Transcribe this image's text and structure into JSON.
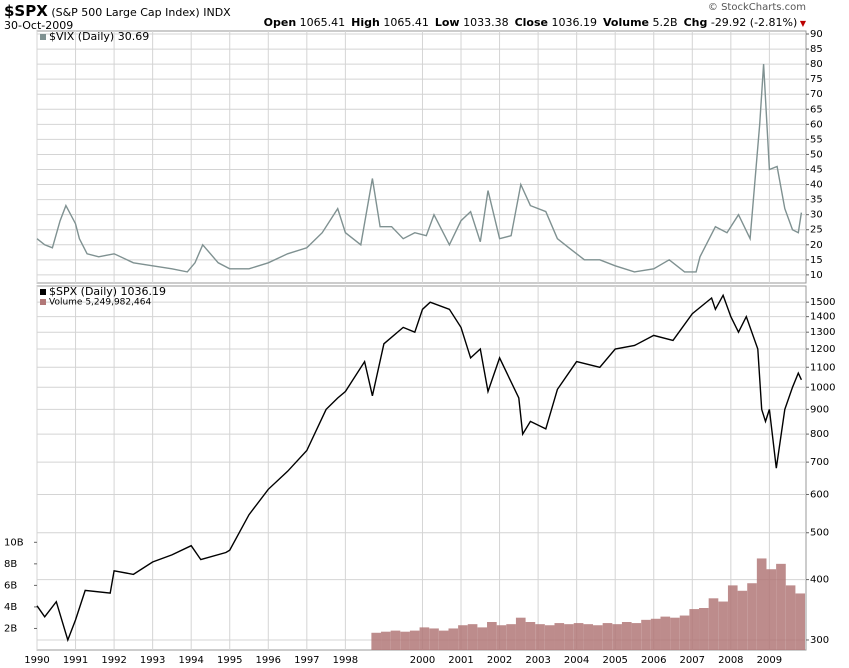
{
  "header": {
    "symbol": "$SPX",
    "name": "(S&P 500 Large Cap Index)",
    "exchange": "INDX",
    "date": "30-Oct-2009",
    "credit": "© StockCharts.com",
    "quote": [
      {
        "label": "Open",
        "value": "1065.41"
      },
      {
        "label": "High",
        "value": "1065.41"
      },
      {
        "label": "Low",
        "value": "1033.38"
      },
      {
        "label": "Close",
        "value": "1036.19"
      },
      {
        "label": "Volume",
        "value": "5.2B"
      },
      {
        "label": "Chg",
        "value": "-29.92 (-2.81%)"
      }
    ]
  },
  "chart_data": [
    {
      "type": "line",
      "xlim": [
        1990,
        2009.95
      ],
      "ylim": [
        7.3,
        91
      ],
      "yticks": [
        90,
        85,
        80,
        75,
        70,
        65,
        60,
        55,
        50,
        45,
        40,
        35,
        30,
        25,
        20,
        15,
        10
      ],
      "grid": true,
      "series": [
        {
          "name": "$VIX (Daily) 30.69",
          "color": "#7f9191",
          "x": [
            1990,
            1990.2,
            1990.4,
            1990.6,
            1990.75,
            1991,
            1991.1,
            1991.3,
            1991.6,
            1992,
            1992.5,
            1993,
            1993.5,
            1993.9,
            1994.1,
            1994.3,
            1994.7,
            1995,
            1995.5,
            1996,
            1996.5,
            1997,
            1997.4,
            1997.8,
            1998,
            1998.4,
            1998.7,
            1998.9,
            1999.2,
            1999.5,
            1999.8,
            2000.1,
            2000.3,
            2000.7,
            2001,
            2001.25,
            2001.5,
            2001.7,
            2002,
            2002.3,
            2002.55,
            2002.8,
            2003.2,
            2003.5,
            2003.8,
            2004.2,
            2004.6,
            2005,
            2005.5,
            2006,
            2006.4,
            2006.8,
            2007.1,
            2007.2,
            2007.6,
            2007.9,
            2008.2,
            2008.5,
            2008.75,
            2008.85,
            2009,
            2009.2,
            2009.4,
            2009.6,
            2009.75,
            2009.83
          ],
          "values": [
            22,
            20,
            19,
            28,
            33,
            27,
            22,
            17,
            16,
            17,
            14,
            13,
            12,
            11,
            14,
            20,
            14,
            12,
            12,
            14,
            17,
            19,
            24,
            32,
            24,
            20,
            42,
            26,
            26,
            22,
            24,
            23,
            30,
            20,
            28,
            31,
            21,
            38,
            22,
            23,
            40,
            33,
            31,
            22,
            19,
            15,
            15,
            13,
            11,
            12,
            15,
            11,
            11,
            16,
            26,
            24,
            30,
            22,
            60,
            80,
            45,
            46,
            32,
            25,
            24,
            30.69
          ]
        }
      ]
    },
    {
      "type": "line",
      "log_scale": true,
      "xlim": [
        1990,
        2009.95
      ],
      "ylim": [
        286,
        1620
      ],
      "yticks": [
        1500,
        1400,
        1300,
        1200,
        1100,
        1000,
        900,
        800,
        700,
        600,
        500,
        400,
        300
      ],
      "grid": true,
      "xticks": [
        1990,
        1991,
        1992,
        1993,
        1994,
        1995,
        1996,
        1997,
        1998,
        2000,
        2001,
        2002,
        2003,
        2004,
        2005,
        2006,
        2007,
        2008,
        2009
      ],
      "y2lim": [
        0,
        33.8
      ],
      "y2ticks": [
        {
          "value": 10,
          "label": "10B"
        },
        {
          "value": 8,
          "label": "8B"
        },
        {
          "value": 6,
          "label": "6B"
        },
        {
          "value": 4,
          "label": "4B"
        },
        {
          "value": 2,
          "label": "2B"
        }
      ],
      "series": [
        {
          "name": "$SPX (Daily) 1036.19",
          "color": "#000000",
          "x": [
            1990,
            1990.2,
            1990.5,
            1990.8,
            1991,
            1991.25,
            1991.9,
            1992,
            1992.5,
            1993,
            1993.5,
            1994,
            1994.25,
            1994.9,
            1995,
            1995.5,
            1996,
            1996.5,
            1997,
            1997.5,
            1997.8,
            1998,
            1998.5,
            1998.7,
            1999,
            1999.5,
            1999.8,
            2000,
            2000.2,
            2000.7,
            2001,
            2001.25,
            2001.5,
            2001.7,
            2002,
            2002.5,
            2002.6,
            2002.8,
            2003.2,
            2003.5,
            2004,
            2004.6,
            2005,
            2005.5,
            2006,
            2006.5,
            2007,
            2007.5,
            2007.6,
            2007.8,
            2008,
            2008.2,
            2008.4,
            2008.7,
            2008.8,
            2008.9,
            2009,
            2009.18,
            2009.4,
            2009.6,
            2009.75,
            2009.83
          ],
          "values": [
            353,
            335,
            360,
            300,
            330,
            380,
            375,
            417,
            410,
            435,
            450,
            470,
            440,
            455,
            460,
            545,
            615,
            670,
            740,
            900,
            950,
            980,
            1130,
            960,
            1230,
            1330,
            1300,
            1450,
            1500,
            1450,
            1330,
            1150,
            1200,
            980,
            1150,
            950,
            800,
            850,
            820,
            990,
            1130,
            1100,
            1200,
            1220,
            1280,
            1250,
            1420,
            1530,
            1450,
            1550,
            1400,
            1300,
            1400,
            1200,
            900,
            850,
            900,
            680,
            900,
            1000,
            1070,
            1036.19
          ]
        },
        {
          "name": "Volume 5,249,982,464",
          "type": "bar",
          "axis": "y2",
          "color": "#b27878",
          "x": [
            1998.8,
            1999.05,
            1999.3,
            1999.55,
            1999.8,
            2000.05,
            2000.3,
            2000.55,
            2000.8,
            2001.05,
            2001.3,
            2001.55,
            2001.8,
            2002.05,
            2002.3,
            2002.55,
            2002.8,
            2003.05,
            2003.3,
            2003.55,
            2003.8,
            2004.05,
            2004.3,
            2004.55,
            2004.8,
            2005.05,
            2005.3,
            2005.55,
            2005.8,
            2006.05,
            2006.3,
            2006.55,
            2006.8,
            2007.05,
            2007.3,
            2007.55,
            2007.8,
            2008.05,
            2008.3,
            2008.55,
            2008.8,
            2009.05,
            2009.3,
            2009.55,
            2009.8
          ],
          "values": [
            1.6,
            1.7,
            1.8,
            1.7,
            1.8,
            2.1,
            2.0,
            1.8,
            2.0,
            2.3,
            2.4,
            2.1,
            2.6,
            2.3,
            2.4,
            3.0,
            2.6,
            2.4,
            2.3,
            2.5,
            2.4,
            2.5,
            2.4,
            2.3,
            2.5,
            2.4,
            2.6,
            2.5,
            2.8,
            2.9,
            3.1,
            3.0,
            3.2,
            3.8,
            3.9,
            4.8,
            4.5,
            6.0,
            5.5,
            6.2,
            8.5,
            7.5,
            8.0,
            6.0,
            5.25
          ]
        }
      ]
    }
  ]
}
